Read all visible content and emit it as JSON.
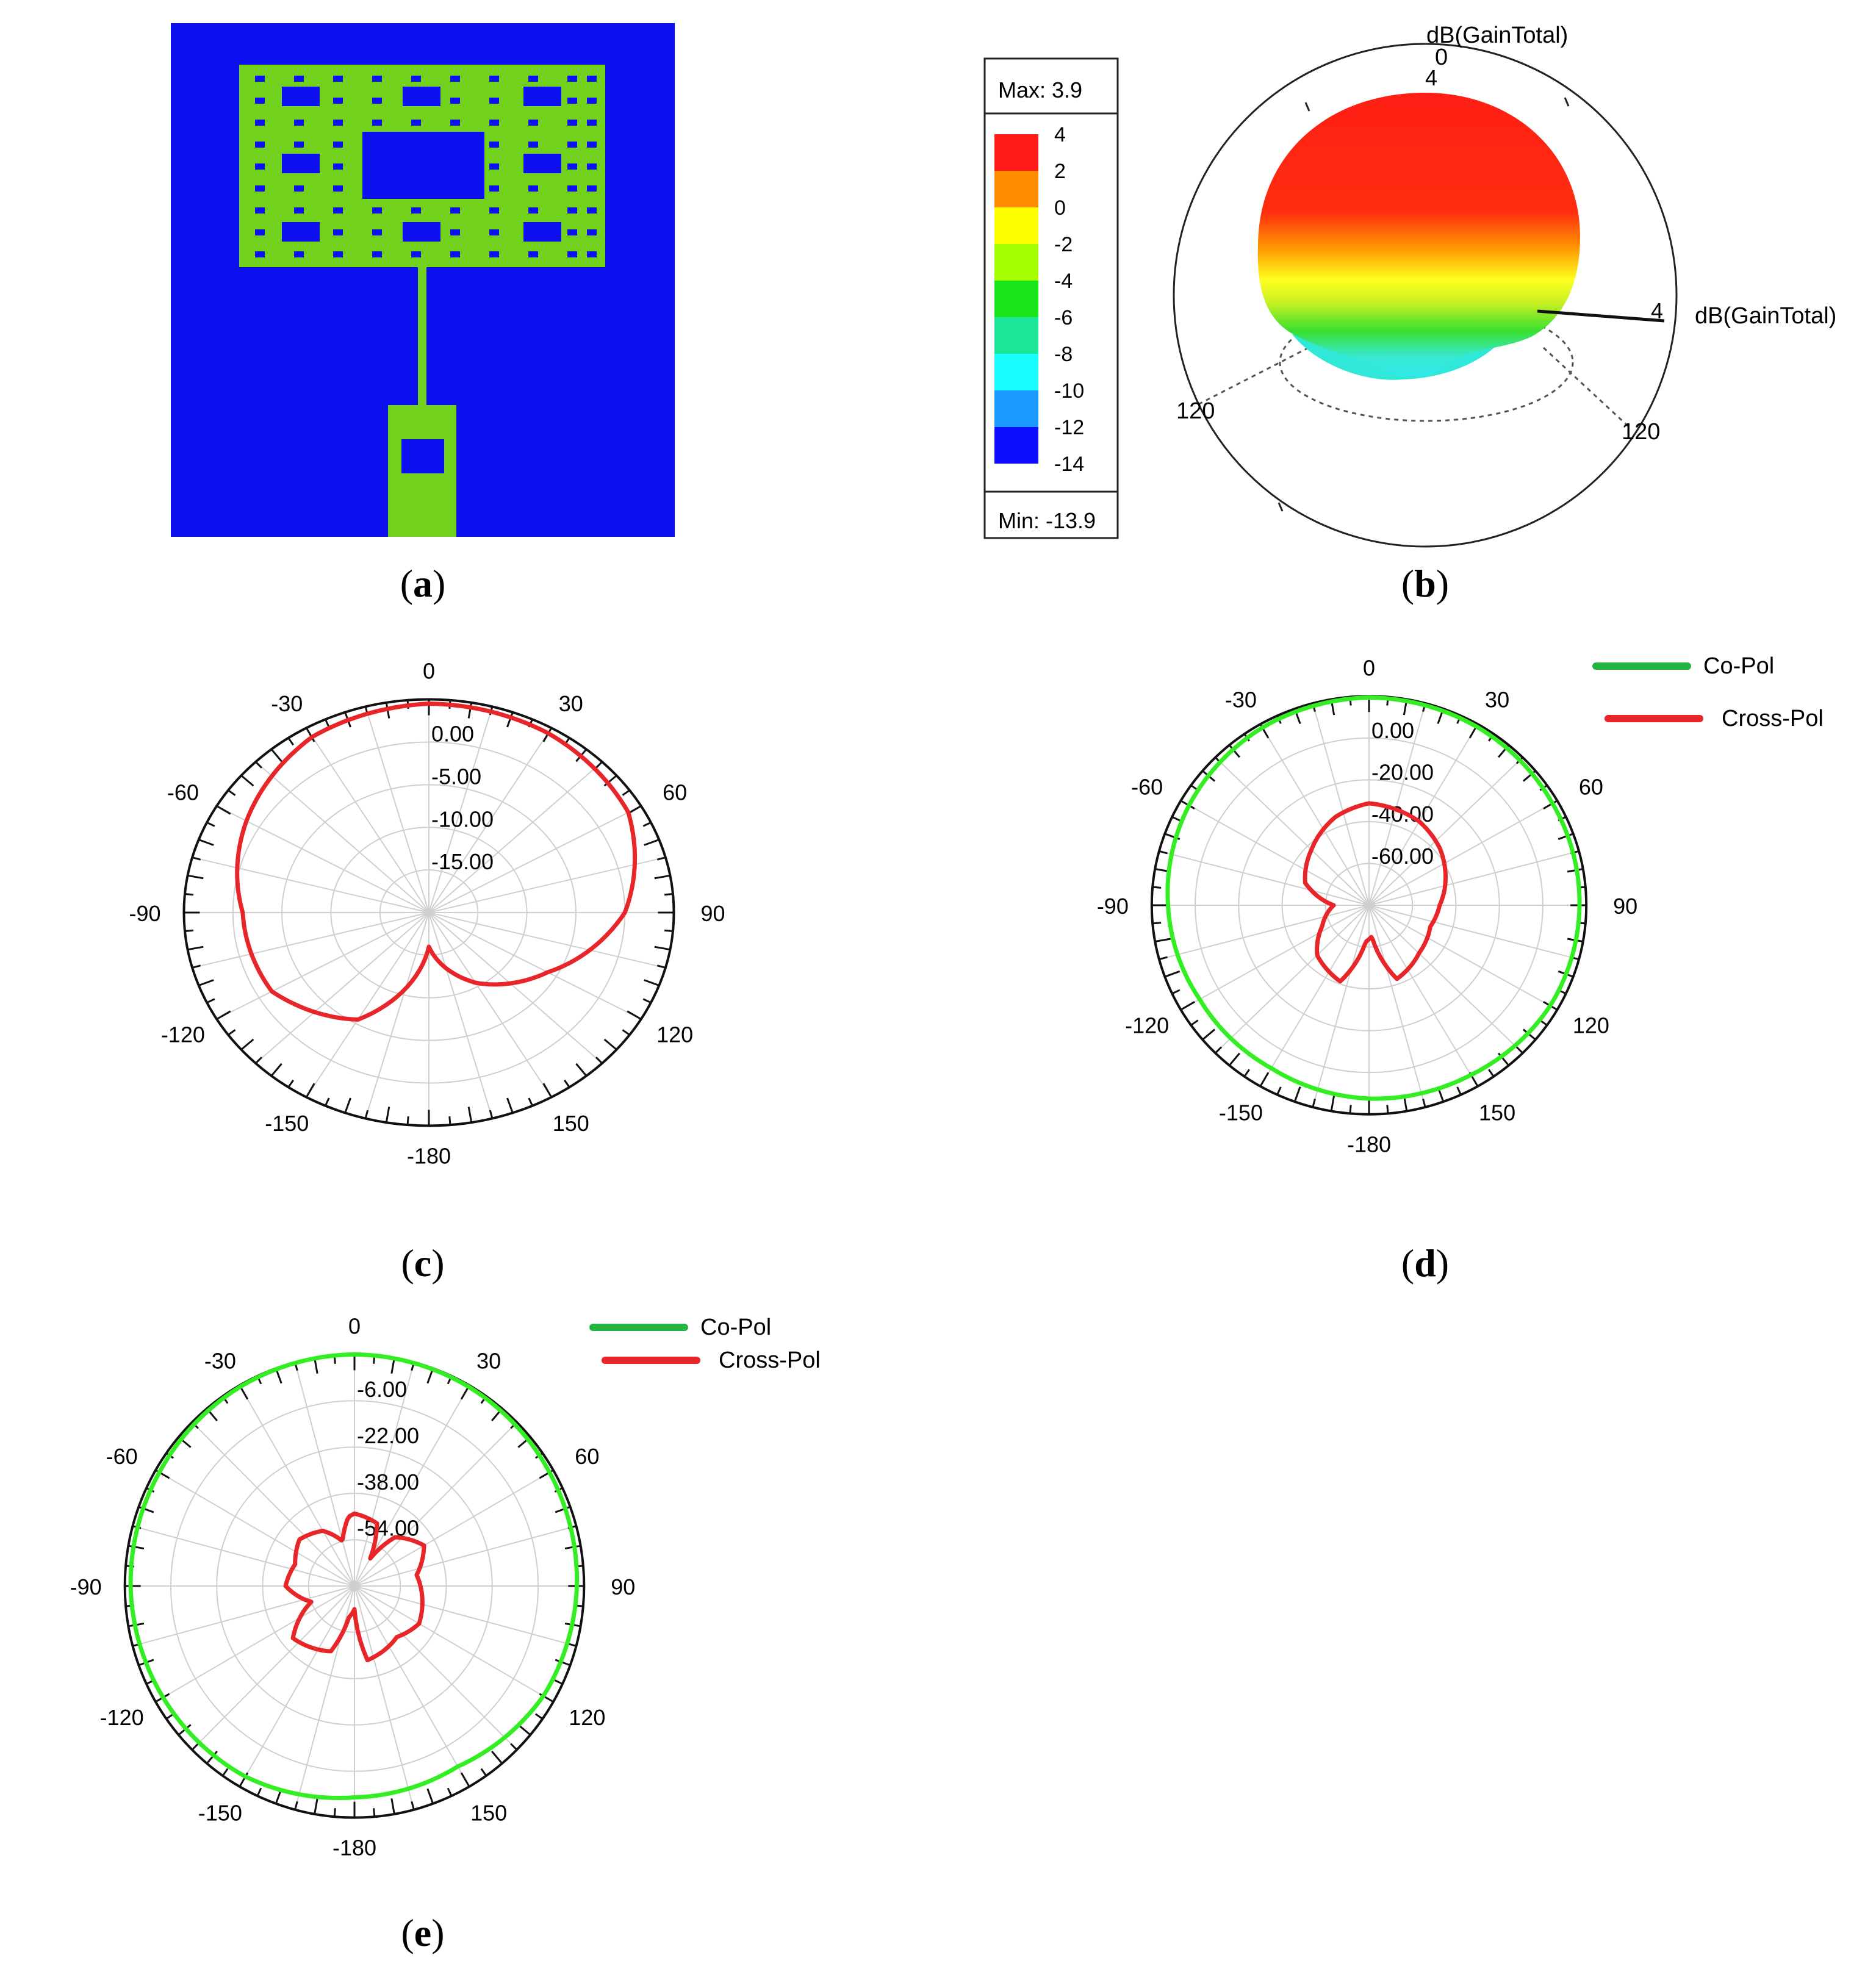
{
  "captions": {
    "a": "a",
    "b": "b",
    "c": "c",
    "d": "d",
    "e": "e"
  },
  "colors": {
    "substrate": "#0c10ee",
    "patch": "#72d11c",
    "cross_pol": "#e8262a",
    "co_pol": "#33ee22",
    "co_pol_legend": "#22b340",
    "grid": "#cfcfcf",
    "frame": "#111111"
  },
  "panel_b": {
    "legend": {
      "max_label": "Max: 3.9",
      "min_label": "Min: -13.9",
      "levels": [
        "4",
        "2",
        "0",
        "-2",
        "-4",
        "-6",
        "-8",
        "-10",
        "-12",
        "-14"
      ],
      "swatches": [
        "#ff1a1a",
        "#ff8c00",
        "#ffff00",
        "#a6ff00",
        "#19e619",
        "#19e699",
        "#19ffff",
        "#1a99ff",
        "#0d0dff"
      ]
    },
    "axis_title_top": "dB(GainTotal)",
    "axis_title_right": "dB(GainTotal)",
    "label_zero": "0",
    "label_top_value": "4",
    "label_right_value": "4",
    "label_left_angle": "120",
    "label_right_angle": "120"
  },
  "chart_data": [
    {
      "panel": "c",
      "type": "polar-line",
      "angle_labels": [
        "0",
        "30",
        "60",
        "90",
        "120",
        "150",
        "-180",
        "-150",
        "-120",
        "-90",
        "-60",
        "-30"
      ],
      "radial_tick_labels": [
        "0.00",
        "-5.00",
        "-10.00",
        "-15.00"
      ],
      "r_range": [
        -25,
        0
      ],
      "grid": true,
      "series": [
        {
          "angles": [
            0,
            30,
            60,
            90,
            120,
            150,
            180,
            210,
            240,
            270,
            300,
            330,
            360
          ],
          "values": [
            -0.5,
            -0.7,
            -1.5,
            -5,
            -11,
            -15.5,
            -21,
            -10.5,
            -6.5,
            -6,
            -3.5,
            -1.2,
            -0.5
          ]
        }
      ]
    },
    {
      "panel": "d",
      "type": "polar-line",
      "angle_labels": [
        "0",
        "30",
        "60",
        "90",
        "120",
        "150",
        "-180",
        "-150",
        "-120",
        "-90",
        "-60",
        "-30"
      ],
      "radial_tick_labels": [
        "0.00",
        "-20.00",
        "-40.00",
        "-60.00"
      ],
      "r_range": [
        -80,
        0
      ],
      "grid": true,
      "legend_position": "top-right",
      "series": [
        {
          "name": "Co-Pol",
          "angles": [
            0,
            30,
            60,
            90,
            120,
            150,
            180,
            210,
            240,
            270,
            300,
            330,
            360
          ],
          "values": [
            -0.5,
            -1,
            -2,
            -2.5,
            -3,
            -5,
            -6,
            -8,
            -8,
            -6,
            -3.5,
            -1.5,
            -0.5
          ]
        },
        {
          "name": "Cross-Pol",
          "angles": [
            0,
            30,
            50,
            70,
            90,
            110,
            135,
            160,
            175,
            185,
            200,
            225,
            245,
            270,
            290,
            315,
            340,
            360
          ],
          "values": [
            -41,
            -43,
            -46,
            -50,
            -54,
            -56,
            -54,
            -50,
            -68,
            -66,
            -49,
            -53,
            -61,
            -67,
            -55,
            -50,
            -44,
            -41
          ]
        }
      ]
    },
    {
      "panel": "e",
      "type": "polar-line",
      "angle_labels": [
        "0",
        "30",
        "60",
        "90",
        "120",
        "150",
        "-180",
        "-150",
        "-120",
        "-90",
        "-60",
        "-30"
      ],
      "radial_tick_labels": [
        "-6.00",
        "-22.00",
        "-38.00",
        "-54.00"
      ],
      "r_range": [
        -86,
        -6
      ],
      "grid": true,
      "legend_position": "top-right",
      "series": [
        {
          "name": "Co-Pol",
          "angles": [
            0,
            30,
            60,
            90,
            120,
            150,
            180,
            210,
            240,
            270,
            300,
            330,
            360
          ],
          "values": [
            -6,
            -6.5,
            -7.5,
            -8.5,
            -10,
            -14,
            -13,
            -10,
            -9,
            -8,
            -7.5,
            -6.5,
            -6
          ]
        },
        {
          "name": "Cross-Pol",
          "angles": [
            0,
            20,
            30,
            40,
            60,
            80,
            100,
            120,
            140,
            160,
            170,
            180,
            190,
            200,
            215,
            230,
            250,
            270,
            290,
            310,
            330,
            345,
            355,
            360
          ],
          "values": [
            -61,
            -63,
            -75,
            -64,
            -58,
            -64,
            -62,
            -60,
            -63,
            -61,
            -60,
            -78,
            -75,
            -62,
            -60,
            -58,
            -70,
            -62,
            -64,
            -61,
            -64,
            -70,
            -62,
            -61
          ]
        }
      ]
    }
  ]
}
